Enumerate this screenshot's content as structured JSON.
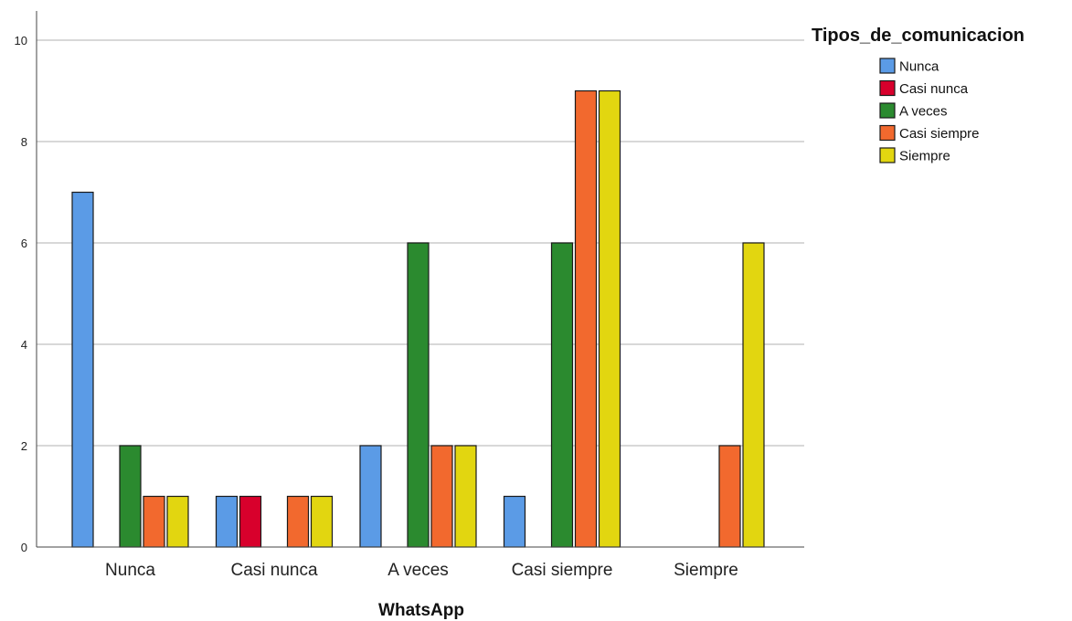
{
  "chart_data": {
    "type": "bar",
    "categories": [
      "Nunca",
      "Casi nunca",
      "A veces",
      "Casi siempre",
      "Siempre"
    ],
    "series": [
      {
        "name": "Nunca",
        "color": "#5b9be6",
        "values": [
          7,
          1,
          2,
          1,
          0
        ]
      },
      {
        "name": "Casi nunca",
        "color": "#d8002c",
        "values": [
          0,
          1,
          0,
          0,
          0
        ]
      },
      {
        "name": "A veces",
        "color": "#2b8a2f",
        "values": [
          2,
          0,
          6,
          6,
          0
        ]
      },
      {
        "name": "Casi siempre",
        "color": "#f2692e",
        "values": [
          1,
          1,
          2,
          9,
          2
        ]
      },
      {
        "name": "Siempre",
        "color": "#e2d610",
        "values": [
          1,
          1,
          2,
          9,
          6
        ]
      }
    ],
    "title": "",
    "xlabel": "WhatsApp",
    "ylabel": "",
    "ylim": [
      0,
      10
    ],
    "yticks": [
      0,
      2,
      4,
      6,
      8,
      10
    ],
    "grid": true,
    "legend": {
      "title": "Tipos_de_comunicacion",
      "position": "top-right"
    }
  }
}
